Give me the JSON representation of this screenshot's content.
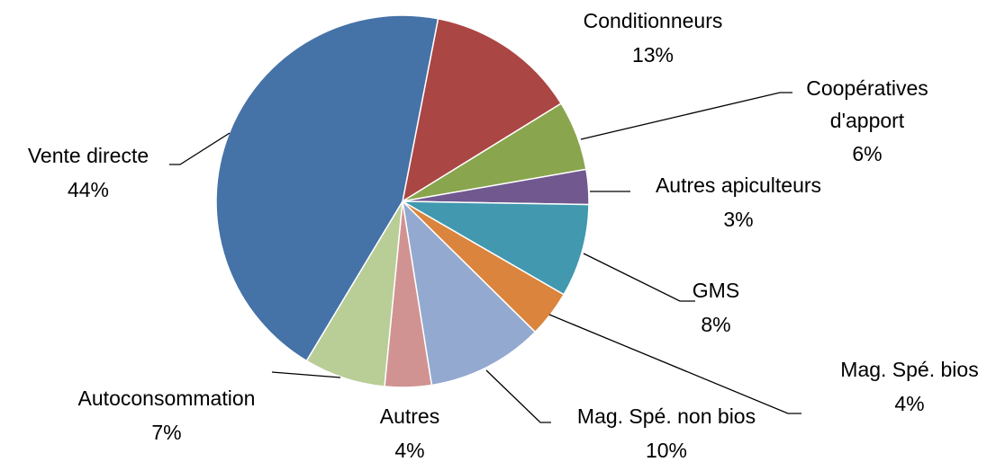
{
  "chart_data": {
    "type": "pie",
    "categories": [
      "Conditionneurs",
      "Coopératives d'apport",
      "Autres apiculteurs",
      "GMS",
      "Mag. Spé. bios",
      "Mag. Spé. non bios",
      "Autres",
      "Autoconsommation",
      "Vente directe"
    ],
    "values": [
      13,
      6,
      3,
      8,
      4,
      10,
      4,
      7,
      44
    ],
    "value_labels": [
      "13%",
      "6%",
      "3%",
      "8%",
      "4%",
      "10%",
      "4%",
      "7%",
      "44%"
    ],
    "colors": [
      "#AA4644",
      "#89A54E",
      "#71588F",
      "#4198AF",
      "#DB843D",
      "#93A9CF",
      "#D09392",
      "#B9CD96",
      "#4572A7"
    ]
  }
}
